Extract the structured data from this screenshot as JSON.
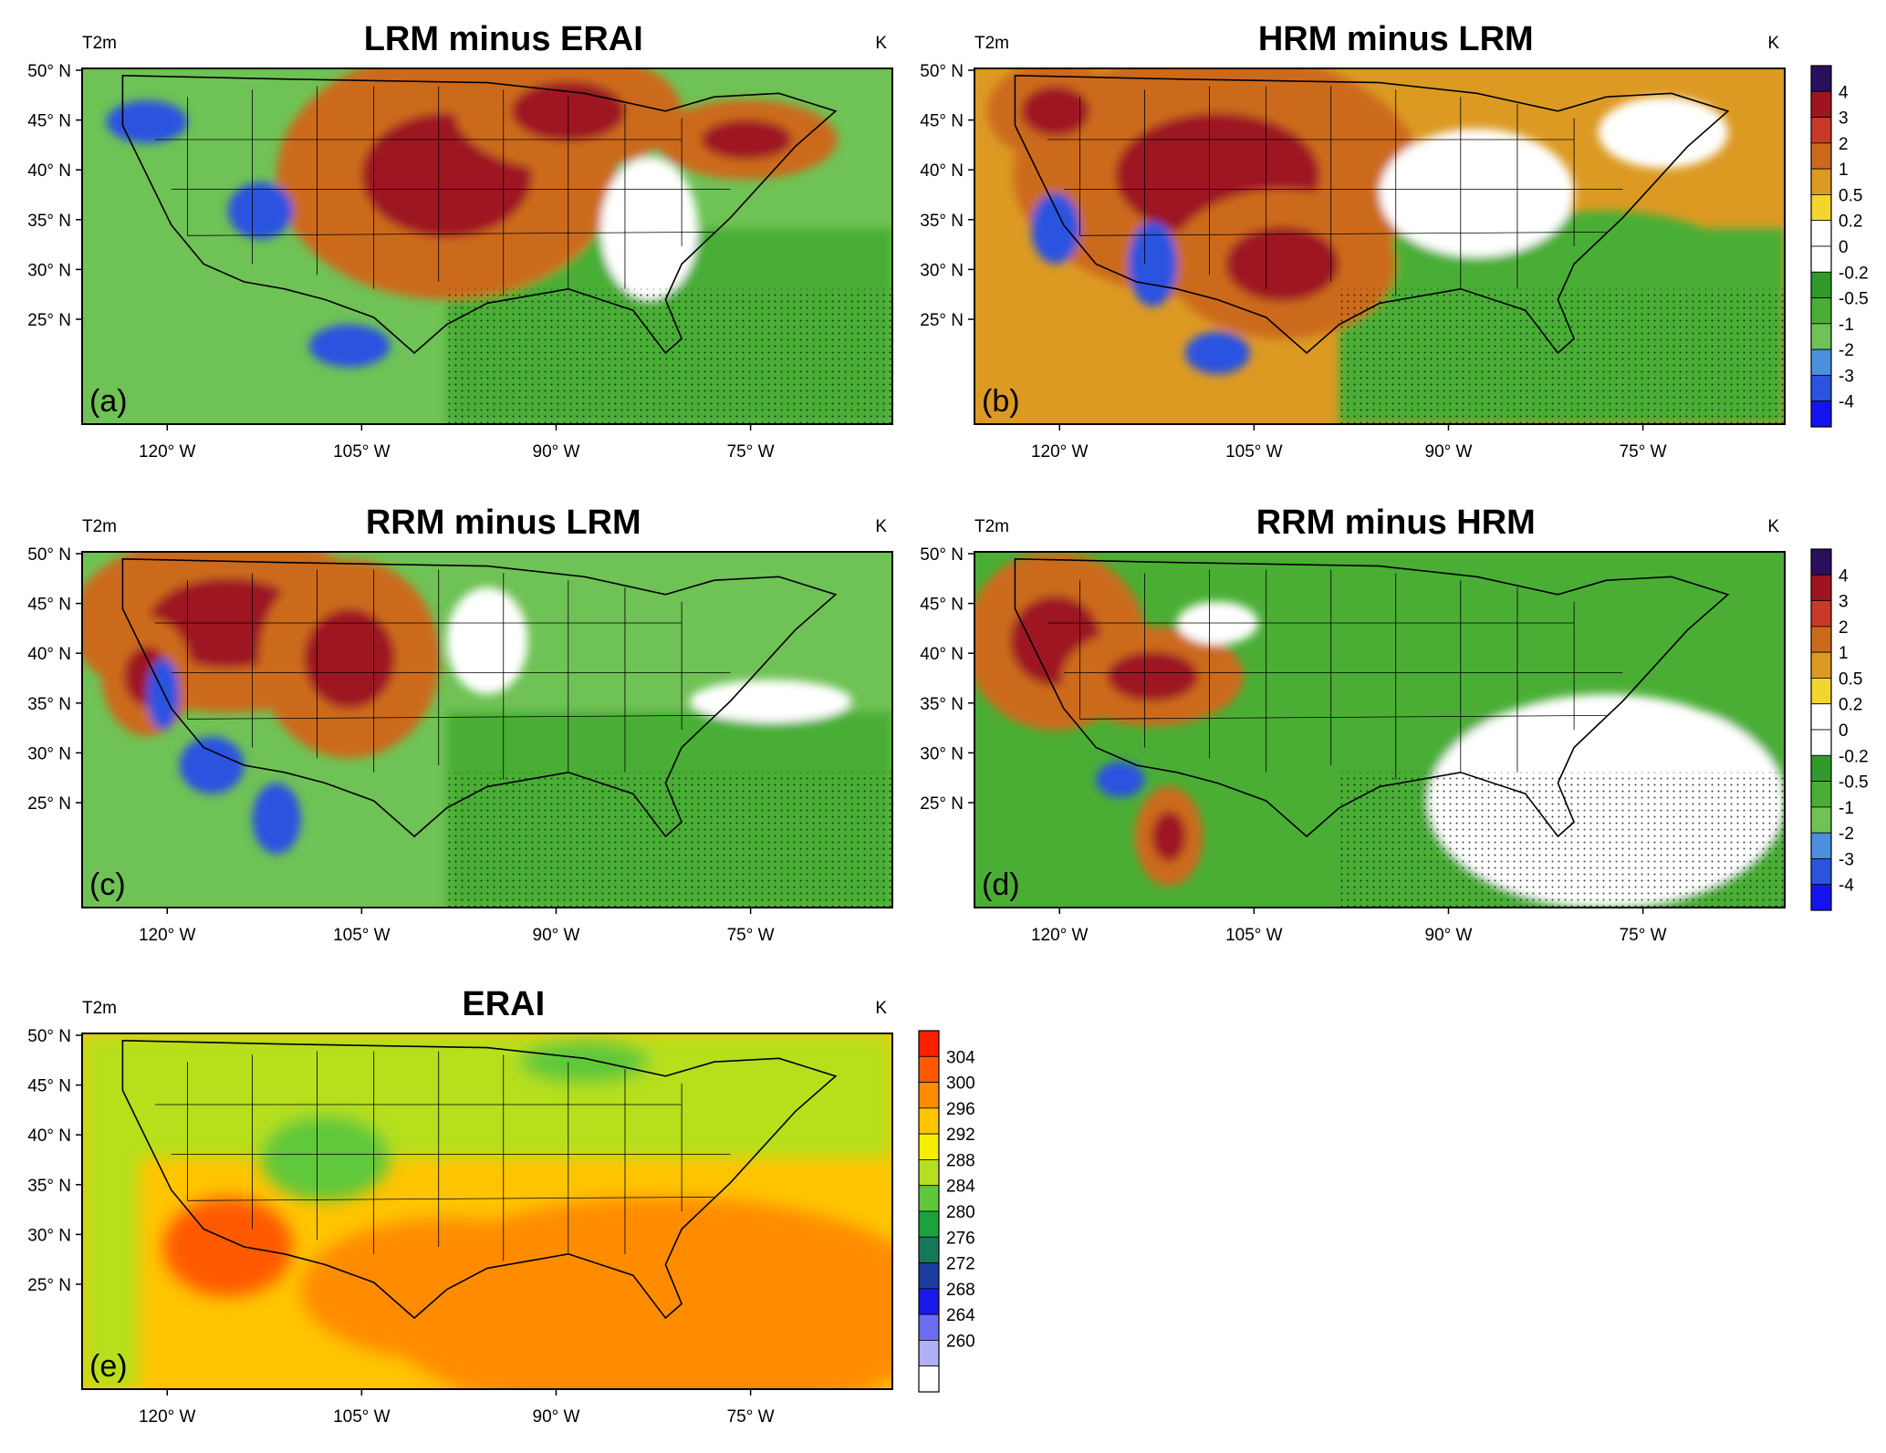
{
  "lat_ticks": [
    "50° N",
    "45° N",
    "40° N",
    "35° N",
    "30° N",
    "25° N"
  ],
  "lon_ticks": [
    "120° W",
    "105° W",
    "90° W",
    "75° W"
  ],
  "panels": [
    {
      "id": "a",
      "variable": "T2m",
      "title": "LRM minus ERAI",
      "units": "K",
      "label": "(a)",
      "scheme": "diff"
    },
    {
      "id": "b",
      "variable": "T2m",
      "title": "HRM minus LRM",
      "units": "K",
      "label": "(b)",
      "scheme": "diff"
    },
    {
      "id": "c",
      "variable": "T2m",
      "title": "RRM minus LRM",
      "units": "K",
      "label": "(c)",
      "scheme": "diff"
    },
    {
      "id": "d",
      "variable": "T2m",
      "title": "RRM minus HRM",
      "units": "K",
      "label": "(d)",
      "scheme": "diff"
    },
    {
      "id": "e",
      "variable": "T2m",
      "title": "ERAI",
      "units": "K",
      "label": "(e)",
      "scheme": "abs"
    }
  ],
  "colorbars": {
    "diff": {
      "labels": [
        "4",
        "3",
        "2",
        "1",
        "0.5",
        "0.2",
        "0",
        "-0.2",
        "-0.5",
        "-1",
        "-2",
        "-3",
        "-4"
      ],
      "colors": [
        "#2a0f5c",
        "#9e1520",
        "#c9392a",
        "#cc6a1c",
        "#dc9a23",
        "#f2d52e",
        "#ffffff",
        "#ffffff",
        "#2f9a2a",
        "#4aae35",
        "#6fc255",
        "#4b8fdf",
        "#2b53e0",
        "#1414ef"
      ]
    },
    "abs": {
      "labels": [
        "304",
        "300",
        "296",
        "292",
        "288",
        "284",
        "280",
        "276",
        "272",
        "268",
        "264",
        "260"
      ],
      "colors": [
        "#ff1f00",
        "#ff5a00",
        "#ff8c00",
        "#ffc400",
        "#f6ef00",
        "#b6df1f",
        "#5fc83a",
        "#1ba23c",
        "#15785a",
        "#1c3da0",
        "#1a1ae8",
        "#6c6cf0",
        "#b0b0f6",
        "#ffffff"
      ]
    }
  },
  "colors": {
    "diff_field": {
      "strong_warm": "#9e1520",
      "warm": "#cc6a1c",
      "mild_warm": "#dc9a23",
      "neutral": "#ffffff",
      "cool": "#4aae35",
      "mild_cool": "#6fc255",
      "strong_cool": "#2b53e0"
    },
    "abs_field": {
      "hot": "#ff5a00",
      "warm": "#ff8c00",
      "mild": "#ffc400",
      "cool": "#b6df1f",
      "cold": "#5fc83a"
    }
  }
}
